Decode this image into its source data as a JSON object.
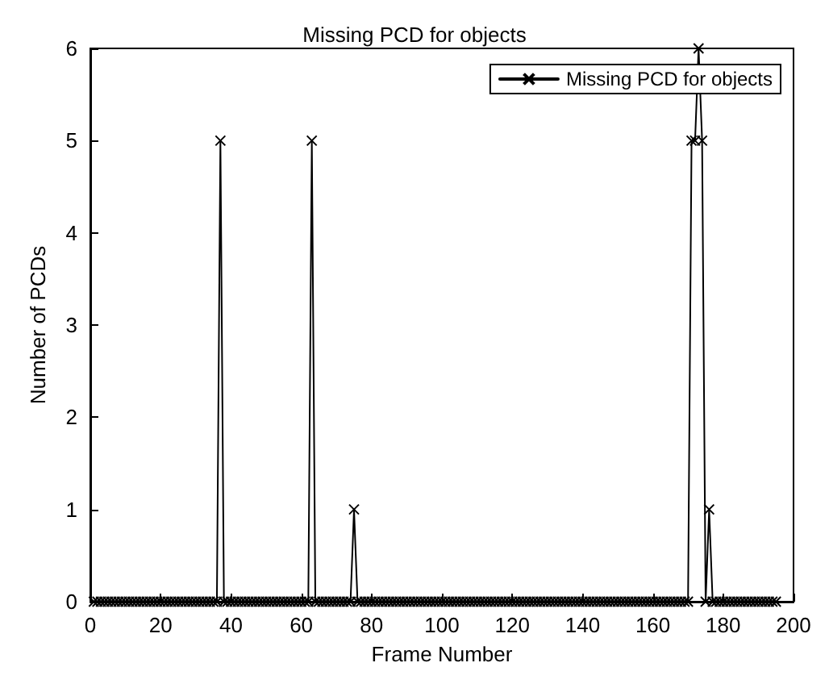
{
  "chart_data": {
    "type": "line",
    "title": "Missing PCD for objects",
    "xlabel": "Frame Number",
    "ylabel": "Number of PCDs",
    "x": [
      1,
      2,
      3,
      4,
      5,
      6,
      7,
      8,
      9,
      10,
      11,
      12,
      13,
      14,
      15,
      16,
      17,
      18,
      19,
      20,
      21,
      22,
      23,
      24,
      25,
      26,
      27,
      28,
      29,
      30,
      31,
      32,
      33,
      34,
      35,
      36,
      37,
      38,
      39,
      40,
      41,
      42,
      43,
      44,
      45,
      46,
      47,
      48,
      49,
      50,
      51,
      52,
      53,
      54,
      55,
      56,
      57,
      58,
      59,
      60,
      61,
      62,
      63,
      64,
      65,
      66,
      67,
      68,
      69,
      70,
      71,
      72,
      73,
      74,
      75,
      76,
      77,
      78,
      79,
      80,
      81,
      82,
      83,
      84,
      85,
      86,
      87,
      88,
      89,
      90,
      91,
      92,
      93,
      94,
      95,
      96,
      97,
      98,
      99,
      100,
      101,
      102,
      103,
      104,
      105,
      106,
      107,
      108,
      109,
      110,
      111,
      112,
      113,
      114,
      115,
      116,
      117,
      118,
      119,
      120,
      121,
      122,
      123,
      124,
      125,
      126,
      127,
      128,
      129,
      130,
      131,
      132,
      133,
      134,
      135,
      136,
      137,
      138,
      139,
      140,
      141,
      142,
      143,
      144,
      145,
      146,
      147,
      148,
      149,
      150,
      151,
      152,
      153,
      154,
      155,
      156,
      157,
      158,
      159,
      160,
      161,
      162,
      163,
      164,
      165,
      166,
      167,
      168,
      169,
      170,
      171,
      172,
      173,
      174,
      175,
      176,
      177,
      178,
      179,
      180,
      181,
      182,
      183,
      184,
      185,
      186,
      187,
      188,
      189,
      190,
      191,
      192,
      193,
      194,
      195
    ],
    "series": [
      {
        "name": "Missing PCD for objects",
        "color": "#000000",
        "values": [
          0,
          0,
          0,
          0,
          0,
          0,
          0,
          0,
          0,
          0,
          0,
          0,
          0,
          0,
          0,
          0,
          0,
          0,
          0,
          0,
          0,
          0,
          0,
          0,
          0,
          0,
          0,
          0,
          0,
          0,
          0,
          0,
          0,
          0,
          0,
          0,
          5,
          0,
          0,
          0,
          0,
          0,
          0,
          0,
          0,
          0,
          0,
          0,
          0,
          0,
          0,
          0,
          0,
          0,
          0,
          0,
          0,
          0,
          0,
          0,
          0,
          0,
          5,
          0,
          0,
          0,
          0,
          0,
          0,
          0,
          0,
          0,
          0,
          0,
          1,
          0,
          0,
          0,
          0,
          0,
          0,
          0,
          0,
          0,
          0,
          0,
          0,
          0,
          0,
          0,
          0,
          0,
          0,
          0,
          0,
          0,
          0,
          0,
          0,
          0,
          0,
          0,
          0,
          0,
          0,
          0,
          0,
          0,
          0,
          0,
          0,
          0,
          0,
          0,
          0,
          0,
          0,
          0,
          0,
          0,
          0,
          0,
          0,
          0,
          0,
          0,
          0,
          0,
          0,
          0,
          0,
          0,
          0,
          0,
          0,
          0,
          0,
          0,
          0,
          0,
          0,
          0,
          0,
          0,
          0,
          0,
          0,
          0,
          0,
          0,
          0,
          0,
          0,
          0,
          0,
          0,
          0,
          0,
          0,
          0,
          0,
          0,
          0,
          0,
          0,
          0,
          0,
          0,
          0,
          0,
          5,
          5,
          6,
          5,
          0,
          1,
          0,
          0,
          0,
          0,
          0,
          0,
          0,
          0,
          0,
          0,
          0,
          0,
          0,
          0,
          0,
          0,
          0,
          0,
          0
        ]
      }
    ],
    "xlim": [
      0,
      200
    ],
    "xticks": [
      0,
      20,
      40,
      60,
      80,
      100,
      120,
      140,
      160,
      180,
      200
    ],
    "ylim": [
      0,
      6
    ],
    "yticks": [
      0,
      1,
      2,
      3,
      4,
      5,
      6
    ],
    "grid": false,
    "legend": "top right",
    "marker": "cross",
    "line_style": "solid"
  }
}
